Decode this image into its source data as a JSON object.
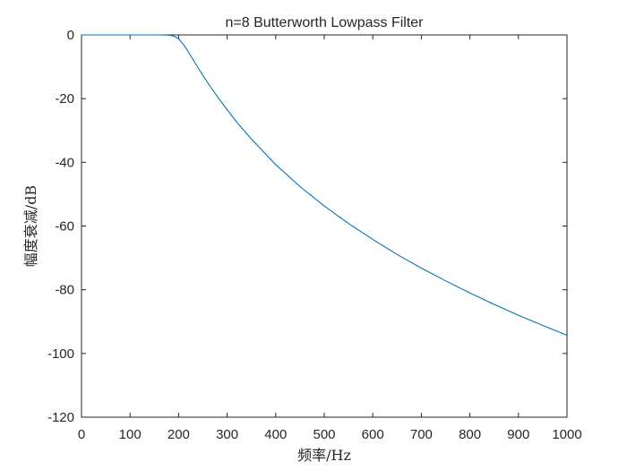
{
  "chart_data": {
    "type": "line",
    "title": "n=8 Butterworth Lowpass Filter",
    "xlabel": "频率/Hz",
    "ylabel": "幅度衰减/dB",
    "xlim": [
      0,
      1000
    ],
    "ylim": [
      -120,
      0
    ],
    "xticks": [
      "0",
      "100",
      "200",
      "300",
      "400",
      "500",
      "600",
      "700",
      "800",
      "900",
      "1000"
    ],
    "yticks": [
      "0",
      "-20",
      "-40",
      "-60",
      "-80",
      "-100",
      "-120"
    ],
    "grid": false,
    "series": [
      {
        "color": "#0072BD",
        "x": [
          0,
          50,
          100,
          150,
          170,
          180,
          190,
          200,
          210,
          220,
          230,
          240,
          250,
          260,
          280,
          300,
          320,
          350,
          400,
          450,
          500,
          550,
          600,
          650,
          700,
          750,
          800,
          850,
          900,
          950,
          1000
        ],
        "y": [
          0,
          0,
          0,
          0,
          -0.03,
          -0.1,
          -0.35,
          -1.2,
          -3.0,
          -5.3,
          -7.8,
          -10.3,
          -12.7,
          -15.0,
          -19.4,
          -23.5,
          -27.4,
          -32.7,
          -40.7,
          -47.6,
          -53.7,
          -59.2,
          -64.2,
          -68.9,
          -73.2,
          -77.2,
          -81.0,
          -84.6,
          -88.0,
          -91.2,
          -94.3
        ]
      }
    ]
  }
}
